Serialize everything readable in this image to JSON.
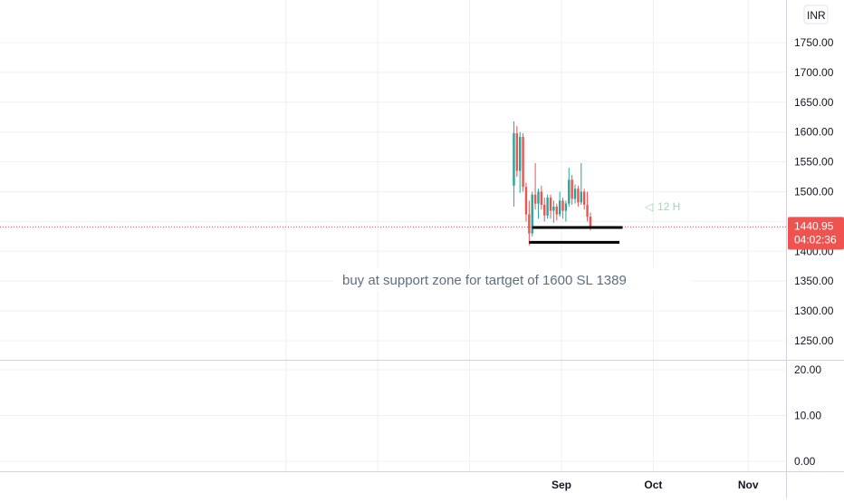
{
  "currency_badge": "INR",
  "timer_label": "12 H",
  "last_price": {
    "value": 1440.95,
    "label": "1440.95",
    "countdown": "04:02:36",
    "color": "#ef5350"
  },
  "annotation": "buy at support zone for tartget of 1600 SL 1389",
  "colors": {
    "up": "#26a69a",
    "down": "#ef5350",
    "grid": "#eef0f3",
    "axis_text": "#131722",
    "support_line": "#000000"
  },
  "chart_data": {
    "type": "candlestick",
    "price_axis": {
      "ylim": [
        1225,
        1800
      ],
      "ticks": [
        {
          "value": 1750,
          "label": "1750.00"
        },
        {
          "value": 1700,
          "label": "1700.00"
        },
        {
          "value": 1650,
          "label": "1650.00"
        },
        {
          "value": 1600,
          "label": "1600.00"
        },
        {
          "value": 1550,
          "label": "1550.00"
        },
        {
          "value": 1500,
          "label": "1500.00"
        },
        {
          "value": 1450,
          "label": "1450.00"
        },
        {
          "value": 1400,
          "label": "1400.00"
        },
        {
          "value": 1350,
          "label": "1350.00"
        },
        {
          "value": 1300,
          "label": "1300.00"
        },
        {
          "value": 1250,
          "label": "1250.00"
        }
      ]
    },
    "volume_axis": {
      "ylim": [
        0,
        20
      ],
      "ticks": [
        {
          "value": 20,
          "label": "20.00"
        },
        {
          "value": 10,
          "label": "10.00"
        },
        {
          "value": 0,
          "label": "0.00"
        }
      ]
    },
    "time_axis": {
      "labels": [
        {
          "date": "2020-09-01",
          "label": "Sep"
        },
        {
          "date": "2020-10-01",
          "label": "Oct"
        },
        {
          "date": "2020-11-01",
          "label": "Nov"
        }
      ]
    },
    "candles": [
      {
        "date": "2020-08-20",
        "open": 1510,
        "high": 1618,
        "low": 1475,
        "close": 1598
      },
      {
        "date": "2020-08-21",
        "open": 1598,
        "high": 1610,
        "low": 1525,
        "close": 1535
      },
      {
        "date": "2020-08-22",
        "open": 1535,
        "high": 1600,
        "low": 1498,
        "close": 1592
      },
      {
        "date": "2020-08-23",
        "open": 1592,
        "high": 1598,
        "low": 1500,
        "close": 1508
      },
      {
        "date": "2020-08-24",
        "open": 1508,
        "high": 1515,
        "low": 1450,
        "close": 1462
      },
      {
        "date": "2020-08-25",
        "open": 1462,
        "high": 1485,
        "low": 1410,
        "close": 1430
      },
      {
        "date": "2020-08-26",
        "open": 1430,
        "high": 1500,
        "low": 1425,
        "close": 1495
      },
      {
        "date": "2020-08-27",
        "open": 1495,
        "high": 1548,
        "low": 1470,
        "close": 1480
      },
      {
        "date": "2020-08-28",
        "open": 1480,
        "high": 1505,
        "low": 1455,
        "close": 1500
      },
      {
        "date": "2020-08-29",
        "open": 1500,
        "high": 1510,
        "low": 1470,
        "close": 1478
      },
      {
        "date": "2020-08-30",
        "open": 1478,
        "high": 1490,
        "low": 1450,
        "close": 1460
      },
      {
        "date": "2020-08-31",
        "open": 1460,
        "high": 1495,
        "low": 1455,
        "close": 1490
      },
      {
        "date": "2020-09-01",
        "open": 1490,
        "high": 1495,
        "low": 1455,
        "close": 1468
      },
      {
        "date": "2020-09-02",
        "open": 1468,
        "high": 1485,
        "low": 1448,
        "close": 1475
      },
      {
        "date": "2020-09-03",
        "open": 1475,
        "high": 1480,
        "low": 1452,
        "close": 1462
      },
      {
        "date": "2020-09-04",
        "open": 1462,
        "high": 1500,
        "low": 1458,
        "close": 1485
      },
      {
        "date": "2020-09-05",
        "open": 1485,
        "high": 1490,
        "low": 1455,
        "close": 1468
      },
      {
        "date": "2020-09-06",
        "open": 1468,
        "high": 1485,
        "low": 1450,
        "close": 1480
      },
      {
        "date": "2020-09-07",
        "open": 1480,
        "high": 1540,
        "low": 1475,
        "close": 1520
      },
      {
        "date": "2020-09-08",
        "open": 1520,
        "high": 1528,
        "low": 1478,
        "close": 1488
      },
      {
        "date": "2020-09-09",
        "open": 1488,
        "high": 1512,
        "low": 1480,
        "close": 1505
      },
      {
        "date": "2020-09-10",
        "open": 1505,
        "high": 1510,
        "low": 1475,
        "close": 1482
      },
      {
        "date": "2020-09-11",
        "open": 1482,
        "high": 1548,
        "low": 1478,
        "close": 1500
      },
      {
        "date": "2020-09-12",
        "open": 1500,
        "high": 1505,
        "low": 1470,
        "close": 1478
      },
      {
        "date": "2020-09-13",
        "open": 1478,
        "high": 1500,
        "low": 1450,
        "close": 1458
      },
      {
        "date": "2020-09-14",
        "open": 1458,
        "high": 1465,
        "low": 1435,
        "close": 1440.95
      }
    ],
    "support_lines": [
      {
        "start": "2020-08-26",
        "end": "2020-09-18",
        "price": 1440
      },
      {
        "start": "2020-08-25",
        "end": "2020-09-17",
        "price": 1415
      }
    ]
  }
}
